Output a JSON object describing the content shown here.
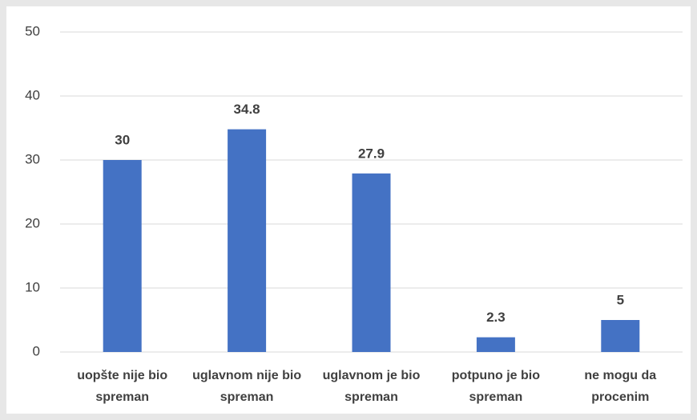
{
  "chart_data": {
    "type": "bar",
    "categories": [
      "uopšte nije bio spreman",
      "uglavnom nije bio spreman",
      "uglavnom je bio spreman",
      "potpuno je bio spreman",
      "ne mogu da procenim"
    ],
    "values": [
      30,
      34.8,
      27.9,
      2.3,
      5
    ],
    "color": "#4472c4",
    "ylim": [
      0,
      50
    ],
    "yticks": [
      0,
      10,
      20,
      30,
      40,
      50
    ],
    "grid": true
  }
}
